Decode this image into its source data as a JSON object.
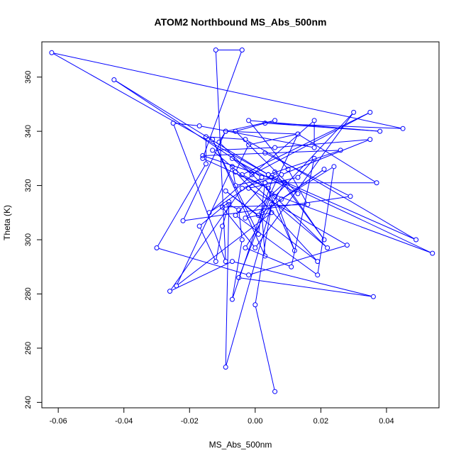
{
  "chart_data": {
    "type": "line",
    "title": "ATOM2 Northbound MS_Abs_500nm",
    "xlabel": "MS_Abs_500nm",
    "ylabel": "Theta (K)",
    "xlim": [
      -0.065,
      0.056
    ],
    "ylim": [
      238,
      373
    ],
    "xticks": [
      -0.06,
      -0.04,
      -0.02,
      0.0,
      0.02,
      0.04
    ],
    "xtick_labels": [
      "-0.06",
      "-0.04",
      "-0.02",
      "0.00",
      "0.02",
      "0.04"
    ],
    "yticks": [
      240,
      260,
      280,
      300,
      320,
      340,
      360
    ],
    "ytick_labels": [
      "240",
      "260",
      "280",
      "300",
      "320",
      "340",
      "360"
    ],
    "grid": false,
    "colors": {
      "series": "#0000ff",
      "axis": "#000000",
      "background": "#ffffff"
    },
    "series": [
      {
        "marker": "open-circle",
        "x": [
          0.006,
          0.0,
          0.005,
          -0.009,
          -0.008,
          -0.017,
          -0.012,
          -0.01,
          -0.008,
          -0.005,
          -0.004,
          -0.007,
          0.006,
          0.021,
          0.009,
          -0.003,
          0.011,
          0.018,
          0.013,
          -0.002,
          0.028,
          -0.002,
          -0.03,
          -0.015,
          -0.015,
          -0.003,
          0.049,
          0.004,
          0.026,
          -0.016,
          0.009,
          -0.003,
          0.005,
          -0.024,
          -0.007,
          -0.006,
          0.005,
          0.054,
          0.005,
          -0.005,
          0.036,
          -0.007,
          -0.026,
          -0.004,
          0.008,
          0.035,
          0.006,
          -0.013,
          0.022,
          -0.011,
          -0.009,
          0.013,
          -0.002,
          -0.006,
          0.019,
          -0.009,
          0.001,
          0.021,
          0.008,
          0.024,
          0.019,
          -0.006,
          0.003,
          0.037,
          0.013,
          0.002,
          0.003,
          -0.013,
          0.001,
          0.003,
          0.012,
          0.006,
          0.03,
          0.0,
          -0.01,
          0.016,
          0.01,
          -0.002,
          0.038,
          0.003,
          0.045,
          -0.062,
          0.004,
          -0.043,
          0.002,
          -0.014,
          0.018,
          0.018,
          -0.017,
          -0.025,
          -0.009,
          -0.012,
          -0.004,
          -0.016,
          0.004,
          -0.004,
          0.035,
          -0.001,
          -0.007,
          0.013,
          -0.006,
          0.006,
          -0.009,
          -0.022,
          0.029,
          0.003
        ],
        "y": [
          244,
          276,
          313,
          253,
          314,
          305,
          292,
          305,
          313,
          311,
          300,
          278,
          325,
          300,
          321,
          297,
          290,
          330,
          323,
          319,
          298,
          287,
          297,
          328,
          338,
          337,
          300,
          324,
          333,
          331,
          321,
          308,
          310,
          283,
          327,
          320,
          323,
          295,
          317,
          286,
          279,
          292,
          281,
          319,
          324,
          337,
          334,
          333,
          297,
          336,
          340,
          339,
          335,
          325,
          292,
          318,
          309,
          326,
          315,
          327,
          287,
          309,
          321,
          321,
          339,
          310,
          294,
          337,
          302,
          321,
          296,
          316,
          347,
          297,
          312,
          313,
          326,
          344,
          340,
          343,
          341,
          369,
          324,
          359,
          323,
          310,
          344,
          334,
          342,
          343,
          292,
          370,
          370,
          330,
          319,
          324,
          347,
          324,
          330,
          317,
          340,
          344,
          340,
          307,
          316,
          332
        ]
      }
    ]
  }
}
